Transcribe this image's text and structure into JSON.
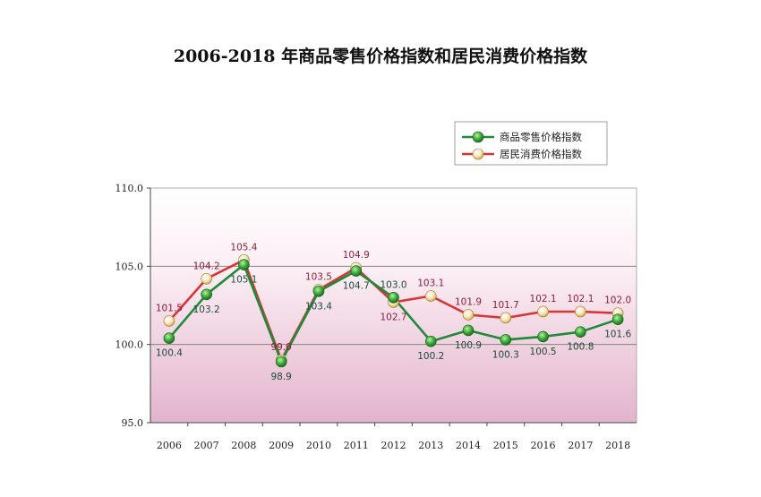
{
  "chart_data": {
    "type": "line",
    "title": "2006-2018 年商品零售价格指数和居民消费价格指数",
    "categories": [
      "2006",
      "2007",
      "2008",
      "2009",
      "2010",
      "2011",
      "2012",
      "2013",
      "2014",
      "2015",
      "2016",
      "2017",
      "2018"
    ],
    "series": [
      {
        "name": "商品零售价格指数",
        "color": "#1f8a3a",
        "values": [
          100.4,
          103.2,
          105.1,
          98.9,
          103.4,
          104.7,
          103.0,
          100.2,
          100.9,
          100.3,
          100.5,
          100.8,
          101.6
        ]
      },
      {
        "name": "居民消费价格指数",
        "color": "#d93434",
        "values": [
          101.5,
          104.2,
          105.4,
          99.0,
          103.5,
          104.9,
          102.7,
          103.1,
          101.9,
          101.7,
          102.1,
          102.1,
          102.0
        ]
      }
    ],
    "ylim": [
      95.0,
      110.0
    ],
    "yticks": [
      "95.0",
      "100.0",
      "105.0",
      "110.0"
    ],
    "grid": true,
    "legend_position": "top-right",
    "plot_background": "gradient white to pink",
    "colors": {
      "accent_green": "#1f8a3a",
      "accent_red": "#d93434",
      "plot_pink": "#e6bcd2"
    }
  }
}
